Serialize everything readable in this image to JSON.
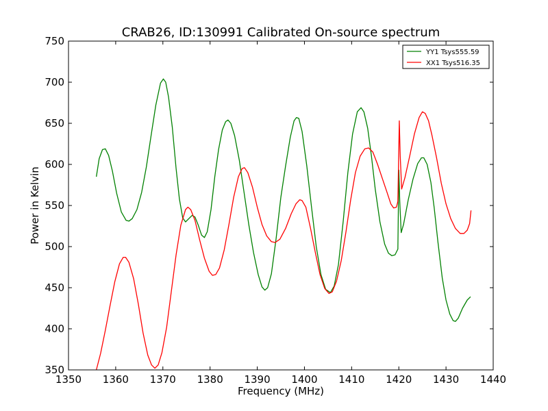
{
  "chart_data": {
    "type": "line",
    "title": "CRAB26, ID:130991 Calibrated On-source spectrum",
    "xlabel": "Frequency (MHz)",
    "ylabel": "Power in Kelvin",
    "xlim": [
      1350,
      1440
    ],
    "ylim": [
      350,
      750
    ],
    "xticks": [
      1350,
      1360,
      1370,
      1380,
      1390,
      1400,
      1410,
      1420,
      1430,
      1440
    ],
    "yticks": [
      350,
      400,
      450,
      500,
      550,
      600,
      650,
      700,
      750
    ],
    "grid": false,
    "legend_position": "top-right",
    "series": [
      {
        "name": "YY1 Tsys555.59",
        "color": "#008000",
        "points": [
          [
            1355.9,
            585
          ],
          [
            1356.5,
            607
          ],
          [
            1357.2,
            618
          ],
          [
            1357.8,
            619
          ],
          [
            1358.5,
            611
          ],
          [
            1359.3,
            592
          ],
          [
            1360.2,
            565
          ],
          [
            1361.2,
            542
          ],
          [
            1362.2,
            532
          ],
          [
            1362.8,
            531
          ],
          [
            1363.5,
            534
          ],
          [
            1364.5,
            545
          ],
          [
            1365.5,
            566
          ],
          [
            1366.5,
            597
          ],
          [
            1367.5,
            635
          ],
          [
            1368.5,
            672
          ],
          [
            1369.5,
            699
          ],
          [
            1370.1,
            704
          ],
          [
            1370.6,
            700
          ],
          [
            1371.2,
            682
          ],
          [
            1372.0,
            645
          ],
          [
            1372.8,
            595
          ],
          [
            1373.5,
            558
          ],
          [
            1374.2,
            535
          ],
          [
            1374.8,
            530
          ],
          [
            1375.5,
            534
          ],
          [
            1376.2,
            538
          ],
          [
            1376.8,
            536
          ],
          [
            1377.5,
            526
          ],
          [
            1378.2,
            514
          ],
          [
            1378.8,
            511
          ],
          [
            1379.4,
            518
          ],
          [
            1380.2,
            545
          ],
          [
            1381.0,
            585
          ],
          [
            1381.8,
            618
          ],
          [
            1382.6,
            642
          ],
          [
            1383.3,
            652
          ],
          [
            1383.8,
            654
          ],
          [
            1384.4,
            650
          ],
          [
            1385.2,
            635
          ],
          [
            1386.2,
            605
          ],
          [
            1387.2,
            566
          ],
          [
            1388.2,
            527
          ],
          [
            1389.2,
            493
          ],
          [
            1390.2,
            466
          ],
          [
            1391.0,
            451
          ],
          [
            1391.6,
            447
          ],
          [
            1392.2,
            450
          ],
          [
            1393.0,
            467
          ],
          [
            1394.0,
            510
          ],
          [
            1395.0,
            560
          ],
          [
            1396.0,
            598
          ],
          [
            1397.0,
            633
          ],
          [
            1397.8,
            653
          ],
          [
            1398.3,
            657
          ],
          [
            1398.8,
            656
          ],
          [
            1399.5,
            640
          ],
          [
            1400.5,
            598
          ],
          [
            1401.5,
            548
          ],
          [
            1402.5,
            500
          ],
          [
            1403.5,
            466
          ],
          [
            1404.5,
            448
          ],
          [
            1405.5,
            444
          ],
          [
            1406.3,
            452
          ],
          [
            1407.2,
            478
          ],
          [
            1408.2,
            530
          ],
          [
            1409.2,
            590
          ],
          [
            1410.2,
            637
          ],
          [
            1411.2,
            664
          ],
          [
            1412.0,
            669
          ],
          [
            1412.6,
            664
          ],
          [
            1413.4,
            644
          ],
          [
            1414.2,
            610
          ],
          [
            1415.0,
            570
          ],
          [
            1416.0,
            530
          ],
          [
            1417.0,
            503
          ],
          [
            1417.8,
            492
          ],
          [
            1418.5,
            489
          ],
          [
            1419.2,
            490
          ],
          [
            1419.8,
            497
          ],
          [
            1420.0,
            593
          ],
          [
            1420.2,
            555
          ],
          [
            1420.5,
            517
          ],
          [
            1421.0,
            527
          ],
          [
            1422.0,
            557
          ],
          [
            1423.0,
            582
          ],
          [
            1424.0,
            601
          ],
          [
            1424.8,
            608
          ],
          [
            1425.3,
            608
          ],
          [
            1426.0,
            600
          ],
          [
            1426.8,
            578
          ],
          [
            1427.5,
            547
          ],
          [
            1428.3,
            505
          ],
          [
            1429.2,
            462
          ],
          [
            1430.0,
            435
          ],
          [
            1430.8,
            418
          ],
          [
            1431.5,
            410
          ],
          [
            1432.0,
            409
          ],
          [
            1432.6,
            413
          ],
          [
            1433.5,
            425
          ],
          [
            1434.5,
            435
          ],
          [
            1435.2,
            439
          ]
        ]
      },
      {
        "name": "XX1 Tsys516.35",
        "color": "#ff0000",
        "points": [
          [
            1355.9,
            350
          ],
          [
            1356.8,
            370
          ],
          [
            1357.8,
            398
          ],
          [
            1358.8,
            428
          ],
          [
            1359.8,
            457
          ],
          [
            1360.8,
            479
          ],
          [
            1361.6,
            487
          ],
          [
            1362.1,
            487
          ],
          [
            1362.8,
            481
          ],
          [
            1363.8,
            461
          ],
          [
            1364.8,
            430
          ],
          [
            1365.8,
            395
          ],
          [
            1366.8,
            368
          ],
          [
            1367.6,
            356
          ],
          [
            1368.3,
            352
          ],
          [
            1369.0,
            356
          ],
          [
            1369.8,
            371
          ],
          [
            1370.8,
            402
          ],
          [
            1371.8,
            446
          ],
          [
            1372.8,
            490
          ],
          [
            1373.8,
            526
          ],
          [
            1374.8,
            545
          ],
          [
            1375.3,
            548
          ],
          [
            1375.9,
            545
          ],
          [
            1376.8,
            532
          ],
          [
            1377.8,
            508
          ],
          [
            1378.8,
            486
          ],
          [
            1379.8,
            470
          ],
          [
            1380.5,
            465
          ],
          [
            1381.2,
            466
          ],
          [
            1382.0,
            474
          ],
          [
            1383.0,
            496
          ],
          [
            1384.0,
            527
          ],
          [
            1385.0,
            560
          ],
          [
            1386.0,
            585
          ],
          [
            1386.8,
            595
          ],
          [
            1387.3,
            596
          ],
          [
            1388.0,
            590
          ],
          [
            1389.0,
            572
          ],
          [
            1390.0,
            548
          ],
          [
            1391.0,
            527
          ],
          [
            1392.0,
            513
          ],
          [
            1393.0,
            506
          ],
          [
            1393.8,
            505
          ],
          [
            1394.8,
            509
          ],
          [
            1396.0,
            522
          ],
          [
            1397.2,
            540
          ],
          [
            1398.2,
            552
          ],
          [
            1399.0,
            557
          ],
          [
            1399.5,
            556
          ],
          [
            1400.3,
            548
          ],
          [
            1401.3,
            522
          ],
          [
            1402.3,
            493
          ],
          [
            1403.3,
            466
          ],
          [
            1404.3,
            449
          ],
          [
            1405.2,
            443
          ],
          [
            1405.9,
            445
          ],
          [
            1406.8,
            458
          ],
          [
            1407.8,
            483
          ],
          [
            1408.8,
            518
          ],
          [
            1409.8,
            557
          ],
          [
            1410.8,
            590
          ],
          [
            1411.8,
            610
          ],
          [
            1412.8,
            619
          ],
          [
            1413.6,
            620
          ],
          [
            1414.5,
            615
          ],
          [
            1415.5,
            600
          ],
          [
            1416.5,
            583
          ],
          [
            1417.5,
            566
          ],
          [
            1418.3,
            552
          ],
          [
            1418.9,
            547
          ],
          [
            1419.5,
            548
          ],
          [
            1419.8,
            555
          ],
          [
            1420.1,
            653
          ],
          [
            1420.3,
            610
          ],
          [
            1420.6,
            570
          ],
          [
            1421.3,
            584
          ],
          [
            1422.3,
            610
          ],
          [
            1423.3,
            637
          ],
          [
            1424.3,
            657
          ],
          [
            1425.0,
            664
          ],
          [
            1425.6,
            662
          ],
          [
            1426.3,
            653
          ],
          [
            1427.0,
            636
          ],
          [
            1428.0,
            608
          ],
          [
            1429.0,
            577
          ],
          [
            1430.0,
            552
          ],
          [
            1431.0,
            534
          ],
          [
            1432.0,
            522
          ],
          [
            1433.0,
            516
          ],
          [
            1433.8,
            516
          ],
          [
            1434.5,
            520
          ],
          [
            1435.0,
            528
          ],
          [
            1435.3,
            544
          ]
        ]
      }
    ]
  }
}
